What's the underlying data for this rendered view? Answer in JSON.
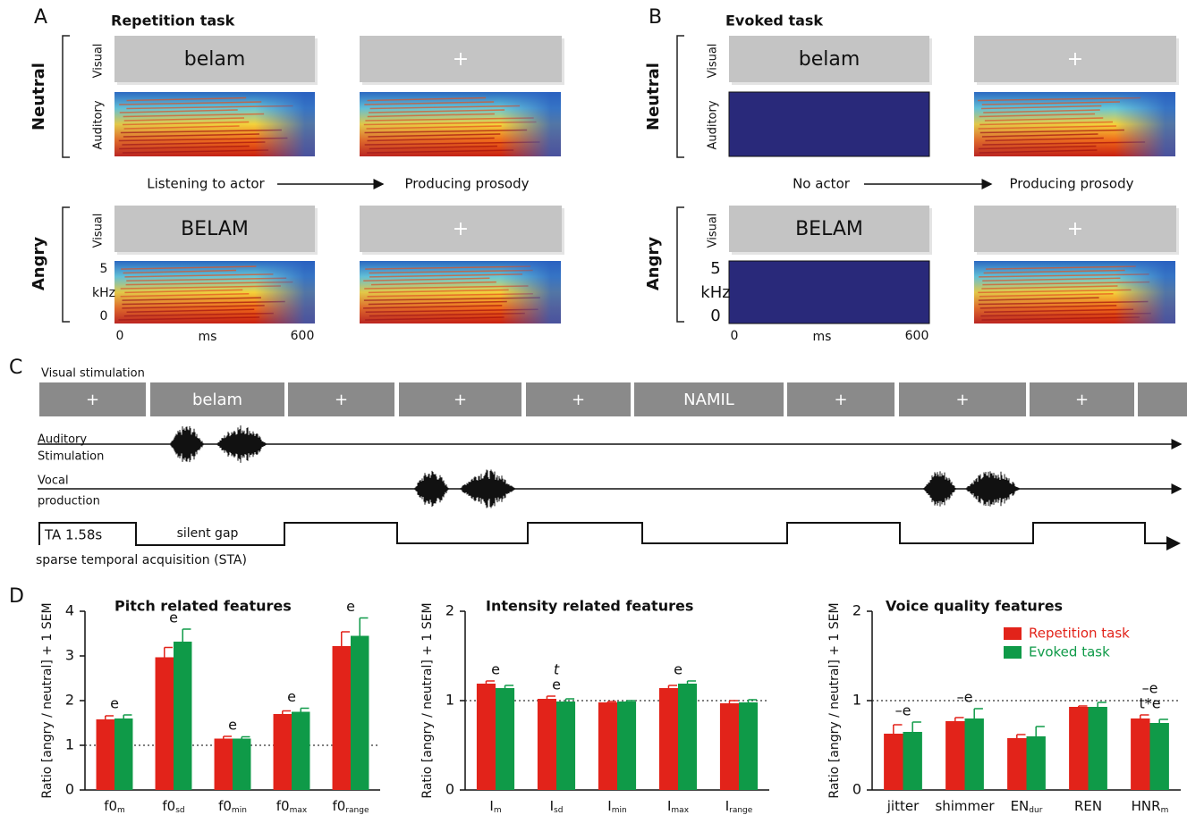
{
  "panel_a": {
    "letter": "A",
    "title": "Repetition task",
    "neutral": "Neutral",
    "angry": "Angry",
    "visual": "Visual",
    "auditory": "Auditory",
    "word_neutral": "belam",
    "fixation": "+",
    "word_angry": "BELAM",
    "left_caption": "Listening to actor",
    "right_caption": "Producing prosody",
    "freq_high": "5",
    "freq_unit": "kHz",
    "freq_low": "0",
    "time_start": "0",
    "time_unit": "ms",
    "time_end": "600"
  },
  "panel_b": {
    "letter": "B",
    "title": "Evoked task",
    "neutral": "Neutral",
    "angry": "Angry",
    "visual": "Visual",
    "auditory": "Auditory",
    "word_neutral": "belam",
    "fixation": "+",
    "word_angry": "BELAM",
    "left_caption": "No actor",
    "right_caption": "Producing prosody",
    "freq_high": "5",
    "freq_unit": "kHz",
    "freq_low": "0",
    "time_start": "0",
    "time_unit": "ms",
    "time_end": "600"
  },
  "panel_c": {
    "letter": "C",
    "visual_stimulation": "Visual stimulation",
    "blocks": [
      "+",
      "belam",
      "+",
      "+",
      "+",
      "NAMIL",
      "+",
      "+",
      "+"
    ],
    "auditory_1": "Auditory",
    "auditory_2": "Stimulation",
    "vocal_1": "Vocal",
    "vocal_2": "production",
    "ta": "TA 1.58s",
    "silent_gap": "silent gap",
    "sta": "sparse temporal acquisition (STA)"
  },
  "panel_d": {
    "letter": "D"
  },
  "chart_data": [
    {
      "type": "bar",
      "title": "Pitch related features",
      "ylabel": "Ratio [angry / neutral] + 1 SEM",
      "categories": [
        {
          "text": "f0",
          "sub": "m"
        },
        {
          "text": "f0",
          "sub": "sd"
        },
        {
          "text": "f0",
          "sub": "min"
        },
        {
          "text": "f0",
          "sub": "max"
        },
        {
          "text": "f0",
          "sub": "range"
        }
      ],
      "series": [
        {
          "color": "#e2231a",
          "values": [
            1.58,
            2.97,
            1.15,
            1.7,
            3.22
          ],
          "errors": [
            0.08,
            0.22,
            0.05,
            0.07,
            0.32
          ]
        },
        {
          "color": "#0f9a48",
          "values": [
            1.6,
            3.32,
            1.15,
            1.75,
            3.45
          ],
          "errors": [
            0.08,
            0.28,
            0.04,
            0.08,
            0.4
          ]
        }
      ],
      "annotations": [
        [
          "e"
        ],
        [
          "e"
        ],
        [
          "e"
        ],
        [
          "e"
        ],
        [
          "e"
        ]
      ],
      "reference_line": 1,
      "ylim": [
        0,
        4
      ],
      "yticks": [
        0,
        1,
        2,
        3,
        4
      ]
    },
    {
      "type": "bar",
      "title": "Intensity related features",
      "ylabel": "Ratio [angry / neutral] + 1 SEM",
      "categories": [
        {
          "text": "I",
          "sub": "m"
        },
        {
          "text": "I",
          "sub": "sd"
        },
        {
          "text": "I",
          "sub": "min"
        },
        {
          "text": "I",
          "sub": "max"
        },
        {
          "text": "I",
          "sub": "range"
        }
      ],
      "series": [
        {
          "color": "#e2231a",
          "values": [
            1.19,
            1.02,
            0.98,
            1.14,
            0.97
          ],
          "errors": [
            0.03,
            0.03,
            0.01,
            0.03,
            0.03
          ]
        },
        {
          "color": "#0f9a48",
          "values": [
            1.14,
            0.99,
            0.99,
            1.19,
            0.98
          ],
          "errors": [
            0.03,
            0.03,
            0.01,
            0.03,
            0.03
          ]
        }
      ],
      "annotations": [
        [
          "e"
        ],
        [
          "e",
          "t"
        ],
        null,
        [
          "e"
        ],
        null
      ],
      "reference_line": 1,
      "ylim": [
        0,
        2
      ],
      "yticks": [
        0,
        1,
        2
      ]
    },
    {
      "type": "bar",
      "title": "Voice quality features",
      "ylabel": "Ratio [angry / neutral] + 1 SEM",
      "categories": [
        {
          "text": "jitter"
        },
        {
          "text": "shimmer"
        },
        {
          "text": "EN",
          "sub": "dur"
        },
        {
          "text": "REN"
        },
        {
          "text": "HNR",
          "sub": "m"
        }
      ],
      "series": [
        {
          "name": "Repetition task",
          "color": "#e2231a",
          "values": [
            0.63,
            0.77,
            0.58,
            0.93,
            0.8
          ],
          "errors": [
            0.1,
            0.04,
            0.04,
            0.01,
            0.04
          ]
        },
        {
          "name": "Evoked task",
          "color": "#0f9a48",
          "values": [
            0.65,
            0.8,
            0.6,
            0.93,
            0.75
          ],
          "errors": [
            0.11,
            0.11,
            0.11,
            0.05,
            0.04
          ]
        }
      ],
      "annotations": [
        [
          "–e"
        ],
        [
          "–e"
        ],
        null,
        null,
        [
          "t*e",
          "–e"
        ]
      ],
      "reference_line": 1,
      "ylim": [
        0,
        2
      ],
      "yticks": [
        0,
        1,
        2
      ],
      "legend": "upper right"
    }
  ]
}
